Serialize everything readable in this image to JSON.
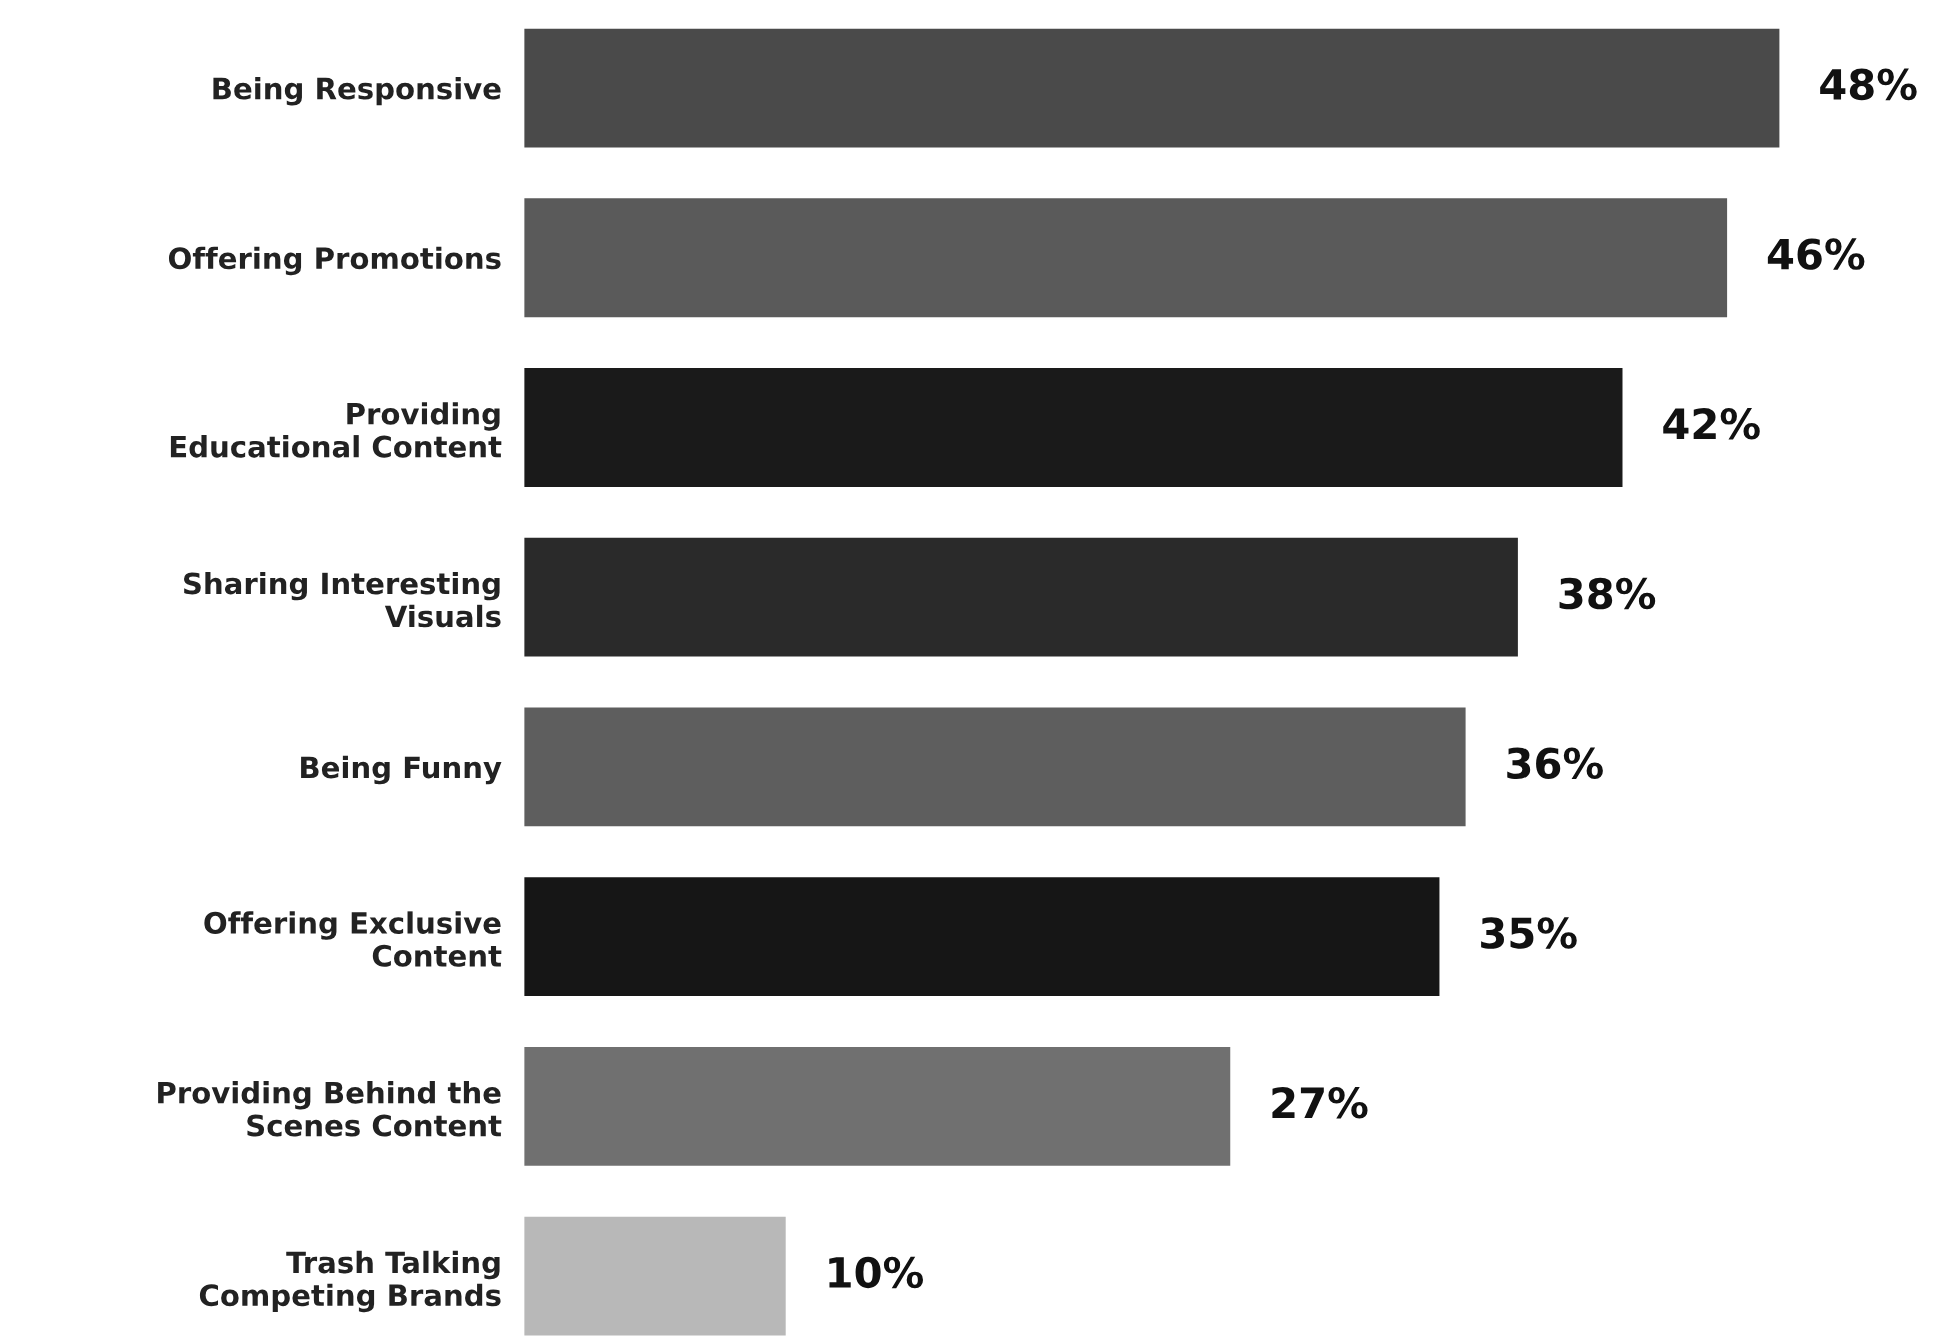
{
  "chart_data": {
    "type": "bar",
    "orientation": "horizontal",
    "categories": [
      "Being Responsive",
      "Offering Promotions",
      "Providing\nEducational Content",
      "Sharing Interesting\nVisuals",
      "Being Funny",
      "Offering Exclusive\nContent",
      "Providing Behind the\nScenes Content",
      "Trash Talking\nCompeting Brands"
    ],
    "values": [
      48,
      46,
      42,
      38,
      36,
      35,
      27,
      10
    ],
    "colors": [
      "#4a4a4a",
      "#5a5a5a",
      "#1a1a1a",
      "#2a2a2a",
      "#5e5e5e",
      "#161616",
      "#707070",
      "#b8b8b8"
    ],
    "value_labels": [
      "48%",
      "46%",
      "42%",
      "38%",
      "36%",
      "35%",
      "27%",
      "10%"
    ]
  }
}
